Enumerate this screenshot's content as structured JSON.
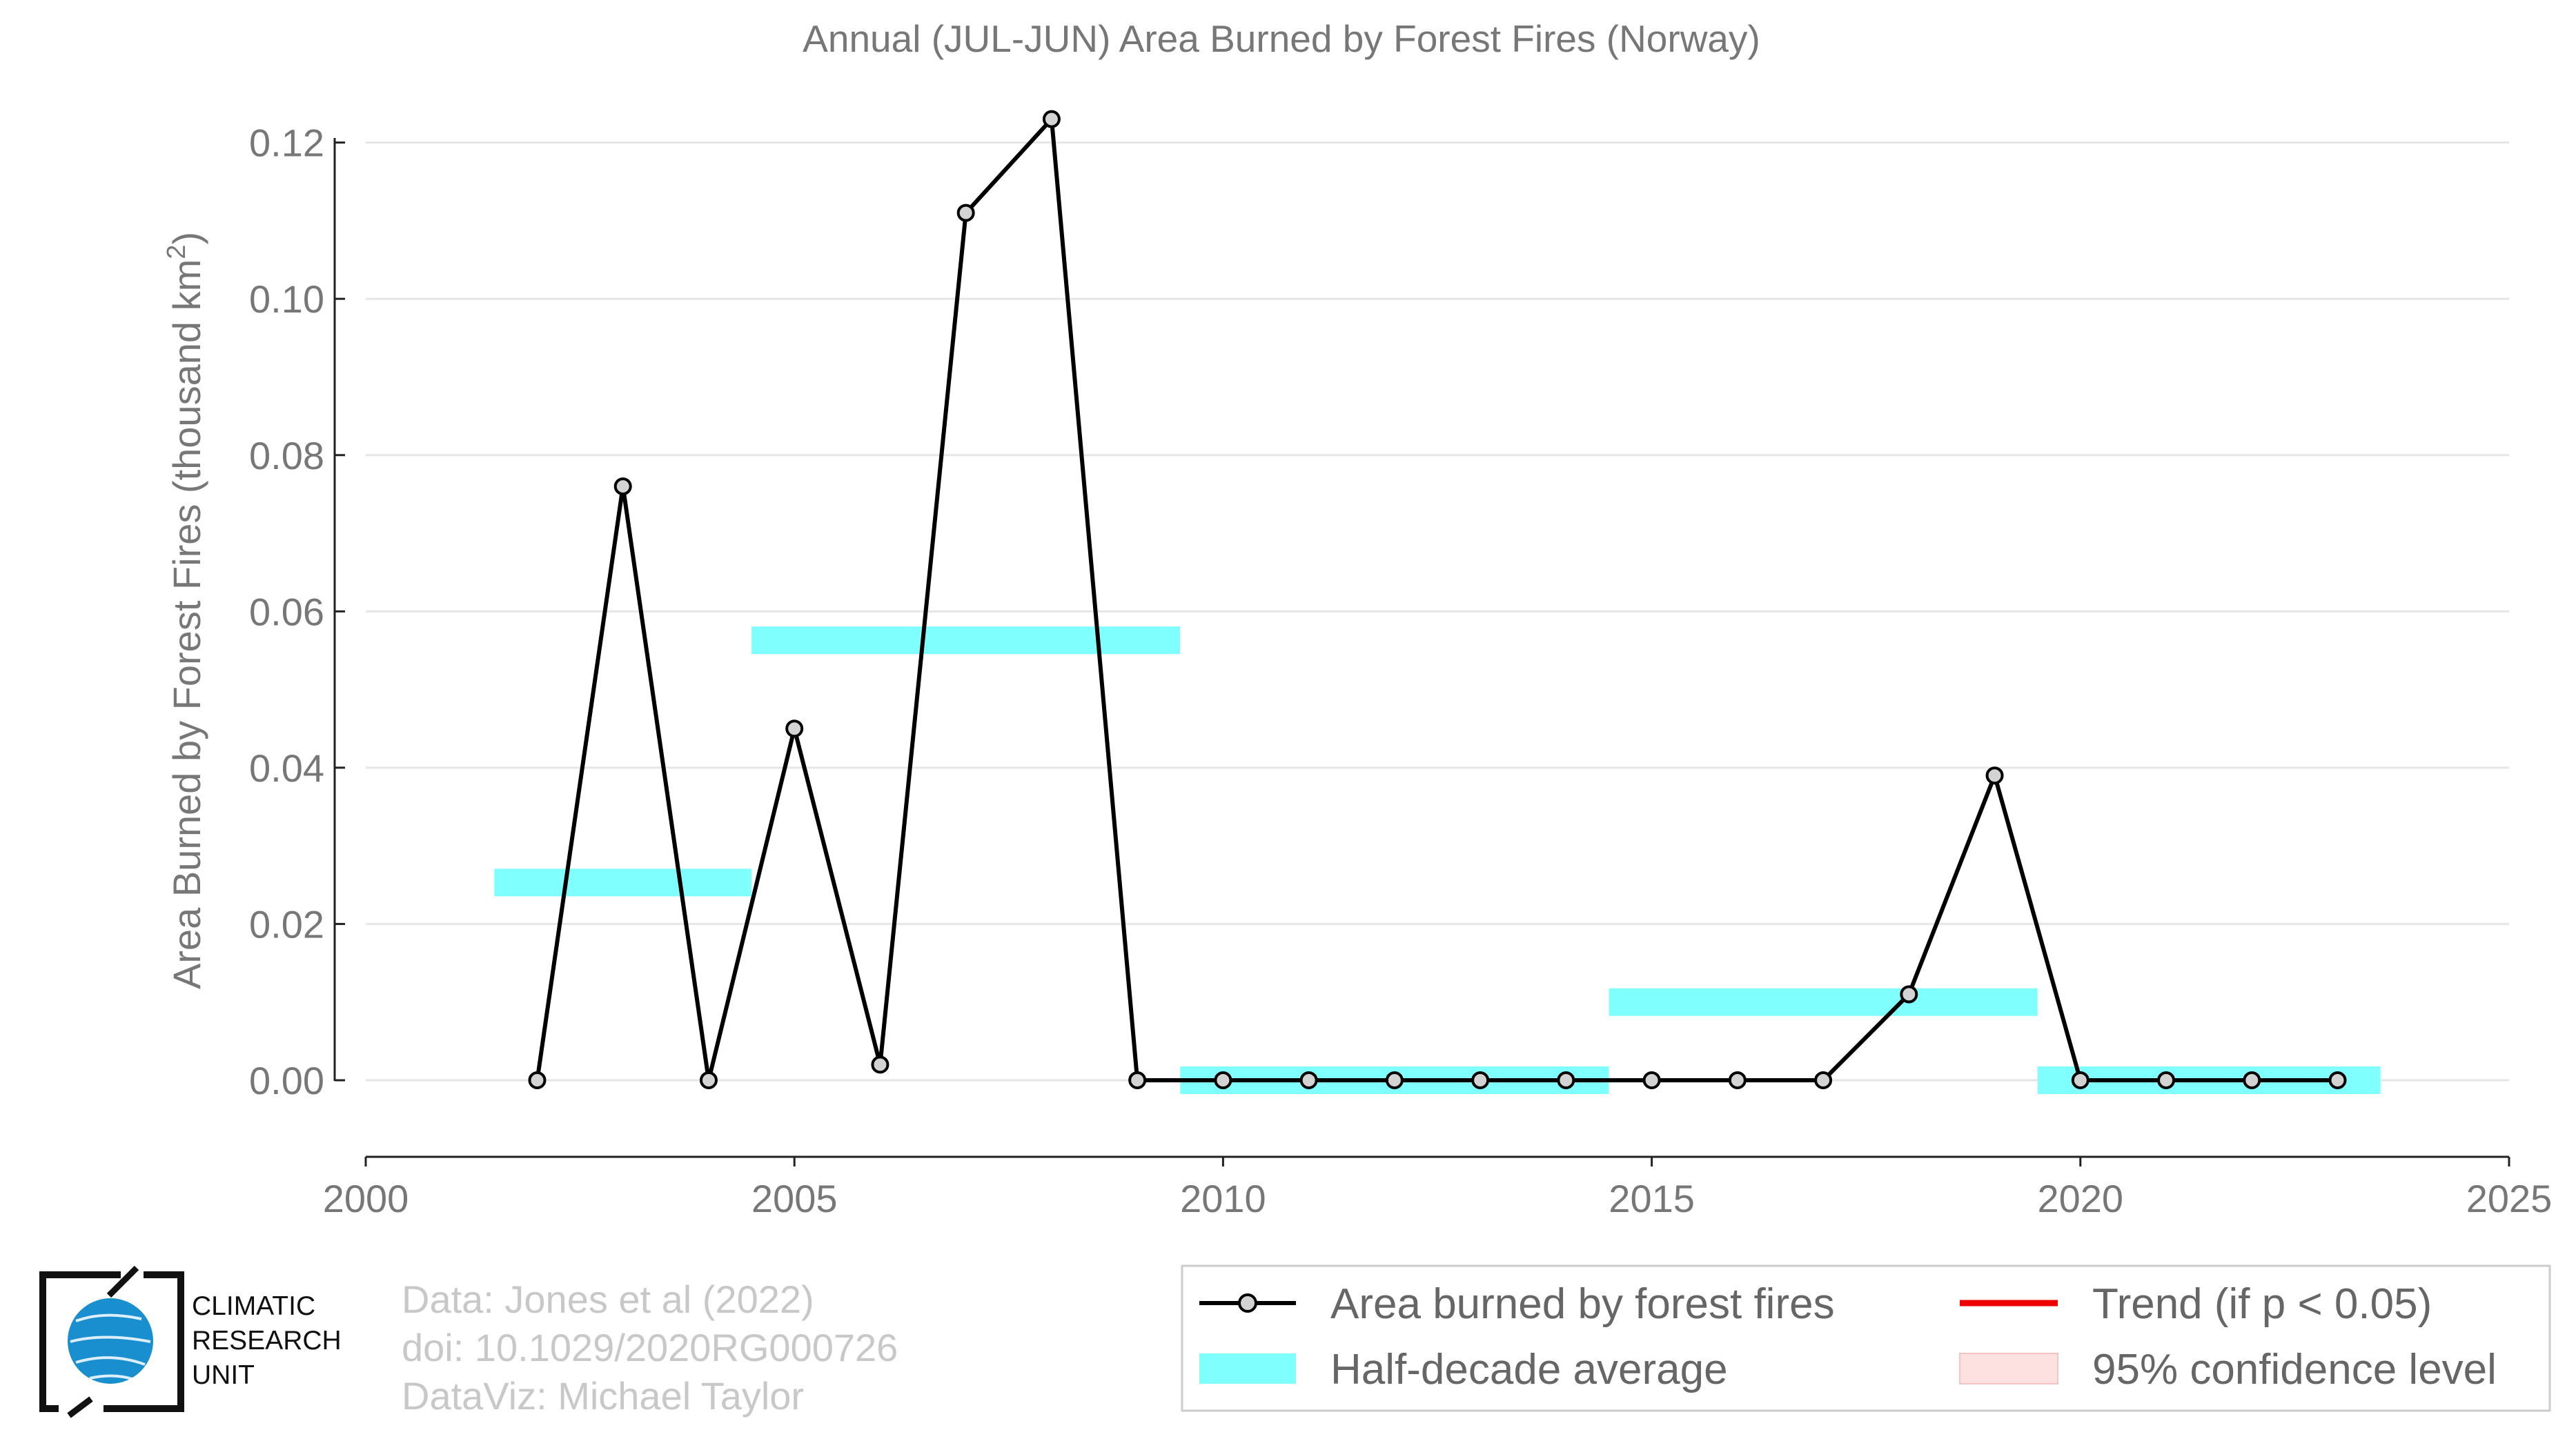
{
  "chart_data": {
    "type": "line",
    "title": "Annual (JUL-JUN) Area Burned by Forest Fires (Norway)",
    "ylabel": "Area Burned by Forest Fires (thousand km",
    "ylabel_superscript": "2",
    "ylabel_suffix": ")",
    "xlim": [
      2000,
      2025
    ],
    "ylim": [
      -0.0098,
      0.125
    ],
    "x_ticks": [
      2000,
      2005,
      2010,
      2015,
      2020,
      2025
    ],
    "y_ticks": [
      0.0,
      0.02,
      0.04,
      0.06,
      0.08,
      0.1,
      0.12
    ],
    "y_tick_labels": [
      "0.00",
      "0.02",
      "0.04",
      "0.06",
      "0.08",
      "0.10",
      "0.12"
    ],
    "grid": true,
    "series": [
      {
        "name": "Area burned by forest fires",
        "color": "#000000",
        "x": [
          2002,
          2003,
          2004,
          2005,
          2006,
          2007,
          2008,
          2009,
          2010,
          2011,
          2012,
          2013,
          2014,
          2015,
          2016,
          2017,
          2018,
          2019,
          2020,
          2021,
          2022,
          2023
        ],
        "y": [
          0.0,
          0.076,
          0.0,
          0.045,
          0.002,
          0.111,
          0.123,
          0.0,
          0.0,
          0.0,
          0.0,
          0.0,
          0.0,
          0.0,
          0.0,
          0.0,
          0.011,
          0.039,
          0.0,
          0.0,
          0.0,
          0.0
        ]
      },
      {
        "name": "Half-decade average",
        "color": "#80ffff",
        "segments": [
          {
            "x_start": 2001.5,
            "x_end": 2004.5,
            "value": 0.0253
          },
          {
            "x_start": 2004.5,
            "x_end": 2009.5,
            "value": 0.0563
          },
          {
            "x_start": 2009.5,
            "x_end": 2014.5,
            "value": 0.0
          },
          {
            "x_start": 2014.5,
            "x_end": 2019.5,
            "value": 0.01
          },
          {
            "x_start": 2019.5,
            "x_end": 2023.5,
            "value": 0.0
          }
        ]
      }
    ],
    "legend": {
      "position": "bottom-right",
      "items": [
        {
          "label": "Area burned by forest fires",
          "type": "line-marker",
          "color": "#000000"
        },
        {
          "label": "Trend (if p < 0.05)",
          "type": "line",
          "color": "#ee0000"
        },
        {
          "label": "Half-decade average",
          "type": "band",
          "color": "#80ffff"
        },
        {
          "label": "95% confidence level",
          "type": "band",
          "color": "#fde0e0"
        }
      ]
    }
  },
  "credits": {
    "line1": "Data: Jones et al (2022)",
    "line2": "doi: 10.1029/2020RG000726",
    "line3": "DataViz: Michael Taylor"
  },
  "logo": {
    "line1": "CLIMATIC",
    "line2": "RESEARCH",
    "line3": "UNIT",
    "globe_color": "#1a8fd0"
  }
}
